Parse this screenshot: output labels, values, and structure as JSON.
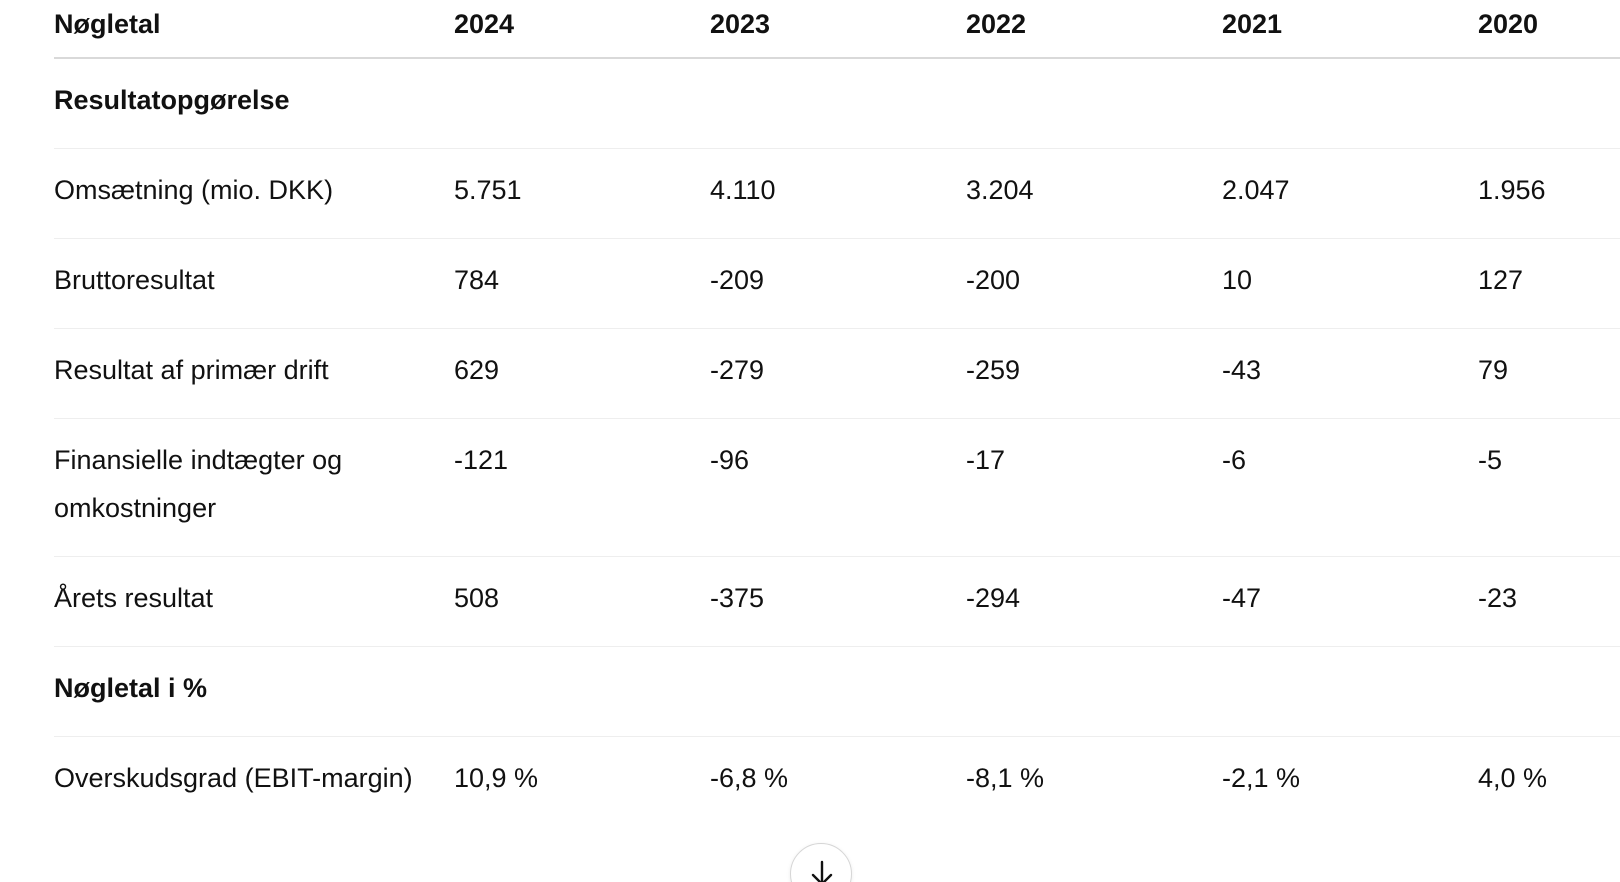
{
  "table": {
    "header": {
      "label": "Nøgletal",
      "years": [
        "2024",
        "2023",
        "2022",
        "2021",
        "2020"
      ]
    },
    "sections": [
      {
        "title": "Resultatopgørelse",
        "rows": [
          {
            "label": "Omsætning (mio. DKK)",
            "values": [
              "5.751",
              "4.110",
              "3.204",
              "2.047",
              "1.956"
            ]
          },
          {
            "label": "Bruttoresultat",
            "values": [
              "784",
              "-209",
              "-200",
              "10",
              "127"
            ]
          },
          {
            "label": "Resultat af primær drift",
            "values": [
              "629",
              "-279",
              "-259",
              "-43",
              "79"
            ]
          },
          {
            "label": "Finansielle indtægter og omkostninger",
            "values": [
              "-121",
              "-96",
              "-17",
              "-6",
              "-5"
            ]
          },
          {
            "label": "Årets resultat",
            "values": [
              "508",
              "-375",
              "-294",
              "-47",
              "-23"
            ]
          }
        ]
      },
      {
        "title": "Nøgletal i %",
        "rows": [
          {
            "label": "Overskudsgrad (EBIT-margin)",
            "values": [
              "10,9 %",
              "-6,8 %",
              "-8,1 %",
              "-2,1 %",
              "4,0 %"
            ]
          }
        ]
      }
    ]
  },
  "scroll_button": {
    "icon": "arrow-down-icon"
  }
}
